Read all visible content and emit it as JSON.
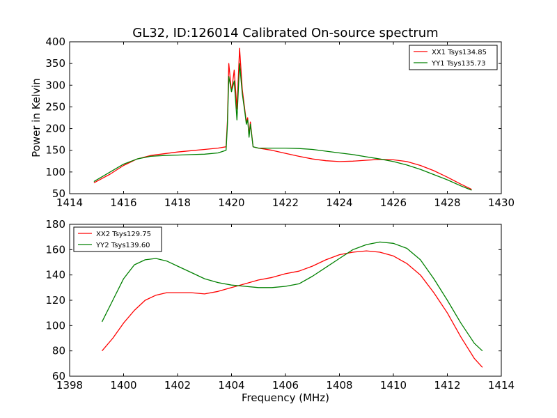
{
  "title": "GL32, ID:126014 Calibrated On-source spectrum",
  "chart_data": [
    {
      "type": "line",
      "ylabel": "Power in Kelvin",
      "xlabel": "",
      "xlim": [
        1414,
        1430
      ],
      "ylim": [
        50,
        400
      ],
      "xticks": [
        "1414",
        "1416",
        "1418",
        "1420",
        "1422",
        "1424",
        "1426",
        "1428",
        "1430"
      ],
      "yticks": [
        "50",
        "100",
        "150",
        "200",
        "250",
        "300",
        "350",
        "400"
      ],
      "legend_position": "top-right",
      "series": [
        {
          "name": "XX1 Tsys134.85",
          "color": "#ff0000",
          "x": [
            1414.9,
            1415.5,
            1416.0,
            1416.5,
            1417.0,
            1417.5,
            1418.0,
            1418.5,
            1419.0,
            1419.5,
            1419.8,
            1419.85,
            1419.9,
            1420.0,
            1420.1,
            1420.2,
            1420.3,
            1420.4,
            1420.5,
            1420.55,
            1420.6,
            1420.65,
            1420.7,
            1420.8,
            1421.0,
            1421.5,
            1422.0,
            1422.5,
            1423.0,
            1423.5,
            1424.0,
            1424.5,
            1425.0,
            1425.5,
            1426.0,
            1426.5,
            1427.0,
            1427.5,
            1428.0,
            1428.5,
            1428.9
          ],
          "y": [
            75,
            95,
            115,
            130,
            138,
            142,
            146,
            149,
            152,
            155,
            158,
            220,
            350,
            285,
            335,
            245,
            385,
            290,
            240,
            215,
            225,
            185,
            215,
            158,
            155,
            150,
            143,
            136,
            130,
            126,
            124,
            125,
            127,
            129,
            128,
            124,
            115,
            103,
            88,
            72,
            60
          ]
        },
        {
          "name": "YY1 Tsys135.73",
          "color": "#008000",
          "x": [
            1414.9,
            1415.5,
            1416.0,
            1416.5,
            1417.0,
            1417.5,
            1418.0,
            1418.5,
            1419.0,
            1419.5,
            1419.8,
            1419.85,
            1419.9,
            1420.0,
            1420.1,
            1420.2,
            1420.3,
            1420.4,
            1420.5,
            1420.55,
            1420.6,
            1420.65,
            1420.7,
            1420.8,
            1421.0,
            1421.5,
            1422.0,
            1422.5,
            1423.0,
            1423.5,
            1424.0,
            1424.5,
            1425.0,
            1425.5,
            1426.0,
            1426.5,
            1427.0,
            1427.5,
            1428.0,
            1428.5,
            1428.9
          ],
          "y": [
            78,
            100,
            118,
            130,
            136,
            138,
            139,
            140,
            141,
            144,
            150,
            210,
            320,
            285,
            310,
            220,
            350,
            280,
            235,
            210,
            220,
            180,
            210,
            158,
            155,
            155,
            155,
            154,
            152,
            148,
            144,
            140,
            135,
            130,
            124,
            116,
            106,
            94,
            82,
            68,
            58
          ]
        }
      ]
    },
    {
      "type": "line",
      "ylabel": "",
      "xlabel": "Frequency (MHz)",
      "xlim": [
        1398,
        1414
      ],
      "ylim": [
        60,
        180
      ],
      "xticks": [
        "1398",
        "1400",
        "1402",
        "1404",
        "1406",
        "1408",
        "1410",
        "1412",
        "1414"
      ],
      "yticks": [
        "60",
        "80",
        "100",
        "120",
        "140",
        "160",
        "180"
      ],
      "legend_position": "top-left",
      "series": [
        {
          "name": "XX2 Tsys129.75",
          "color": "#ff0000",
          "x": [
            1399.2,
            1399.6,
            1400.0,
            1400.4,
            1400.8,
            1401.2,
            1401.6,
            1402.0,
            1402.5,
            1403.0,
            1403.5,
            1404.0,
            1404.5,
            1405.0,
            1405.5,
            1406.0,
            1406.5,
            1407.0,
            1407.5,
            1408.0,
            1408.5,
            1409.0,
            1409.5,
            1410.0,
            1410.5,
            1411.0,
            1411.5,
            1412.0,
            1412.5,
            1413.0,
            1413.3
          ],
          "y": [
            80,
            90,
            102,
            112,
            120,
            124,
            126,
            126,
            126,
            125,
            127,
            130,
            133,
            136,
            138,
            141,
            143,
            147,
            152,
            156,
            158,
            159,
            158,
            155,
            149,
            140,
            126,
            110,
            91,
            74,
            67
          ]
        },
        {
          "name": "YY2 Tsys139.60",
          "color": "#008000",
          "x": [
            1399.2,
            1399.6,
            1400.0,
            1400.4,
            1400.8,
            1401.2,
            1401.6,
            1402.0,
            1402.5,
            1403.0,
            1403.5,
            1404.0,
            1404.5,
            1405.0,
            1405.5,
            1406.0,
            1406.5,
            1407.0,
            1407.5,
            1408.0,
            1408.5,
            1409.0,
            1409.5,
            1410.0,
            1410.5,
            1411.0,
            1411.5,
            1412.0,
            1412.5,
            1413.0,
            1413.3
          ],
          "y": [
            103,
            120,
            137,
            148,
            152,
            153,
            151,
            147,
            142,
            137,
            134,
            132,
            131,
            130,
            130,
            131,
            133,
            139,
            146,
            153,
            160,
            164,
            166,
            165,
            161,
            152,
            137,
            120,
            102,
            86,
            80
          ]
        }
      ]
    }
  ]
}
